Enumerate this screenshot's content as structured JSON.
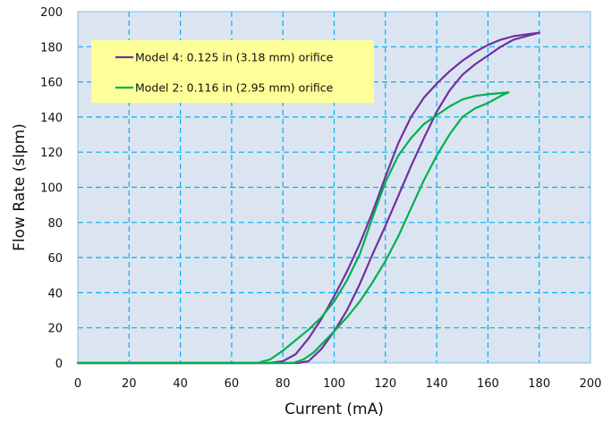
{
  "chart_data": {
    "type": "line",
    "xlabel": "Current (mA)",
    "ylabel": "Flow Rate (slpm)",
    "xlim": [
      0,
      200
    ],
    "ylim": [
      0,
      200
    ],
    "x_ticks": [
      0,
      20,
      40,
      60,
      80,
      100,
      120,
      140,
      160,
      180,
      200
    ],
    "y_ticks": [
      0,
      20,
      40,
      60,
      80,
      100,
      120,
      140,
      160,
      180,
      200
    ],
    "grid": true,
    "grid_style": "dashed",
    "legend_position": "top-left",
    "colors": {
      "plot_background": "#dbe5f1",
      "grid": "#00b0f0",
      "legend_background": "#ffff99",
      "frame": "#7fbfe8"
    },
    "series": [
      {
        "name": "Model 4: 0.125 in (3.18 mm) orifice",
        "color": "#7030a0",
        "up": {
          "x": [
            0,
            60,
            80,
            86,
            90,
            95,
            100,
            105,
            110,
            115,
            120,
            125,
            130,
            135,
            140,
            145,
            150,
            155,
            160,
            165,
            170,
            175,
            180
          ],
          "y": [
            0,
            0,
            0,
            0,
            1,
            8,
            18,
            30,
            45,
            62,
            78,
            95,
            112,
            128,
            143,
            155,
            164,
            170,
            175,
            180,
            184,
            186,
            188
          ]
        },
        "down": {
          "x": [
            180,
            175,
            170,
            165,
            160,
            155,
            150,
            145,
            140,
            135,
            130,
            125,
            120,
            115,
            110,
            105,
            100,
            95,
            90,
            85,
            80,
            75,
            70,
            60,
            0
          ],
          "y": [
            188,
            187,
            186,
            184,
            181,
            177,
            172,
            166,
            159,
            151,
            140,
            125,
            106,
            86,
            68,
            52,
            38,
            25,
            14,
            5,
            1,
            0,
            0,
            0,
            0
          ]
        }
      },
      {
        "name": "Model 2: 0.116 in (2.95 mm) orifice",
        "color": "#00b050",
        "up": {
          "x": [
            0,
            60,
            84,
            88,
            92,
            96,
            100,
            105,
            110,
            115,
            120,
            125,
            130,
            135,
            140,
            145,
            150,
            155,
            160,
            165,
            168
          ],
          "y": [
            0,
            0,
            0,
            2,
            6,
            12,
            18,
            26,
            35,
            46,
            58,
            72,
            88,
            104,
            118,
            130,
            140,
            145,
            148,
            152,
            154
          ]
        },
        "down": {
          "x": [
            168,
            160,
            155,
            150,
            145,
            140,
            135,
            130,
            125,
            120,
            115,
            110,
            105,
            100,
            95,
            90,
            85,
            80,
            75,
            70,
            60,
            0
          ],
          "y": [
            154,
            153,
            152,
            150,
            146,
            141,
            136,
            128,
            118,
            103,
            83,
            62,
            47,
            35,
            26,
            19,
            13,
            7,
            2,
            0,
            0,
            0
          ]
        }
      }
    ]
  }
}
